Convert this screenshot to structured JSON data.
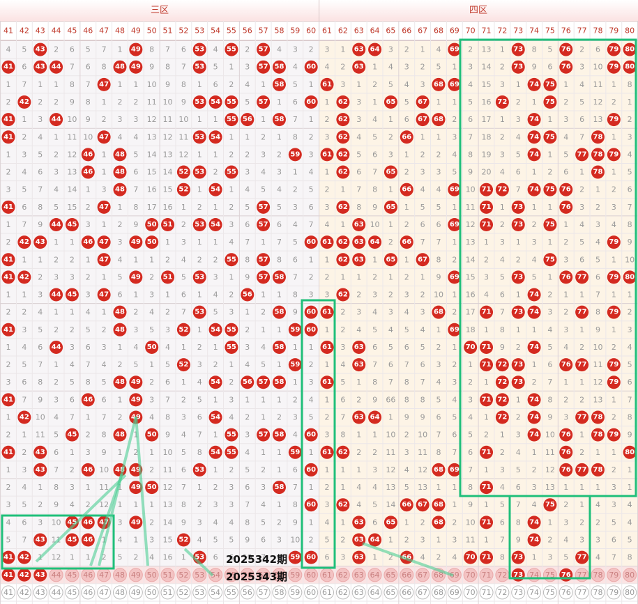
{
  "header": {
    "zone_left": "三区",
    "zone_right": "四区",
    "columns": [
      41,
      42,
      43,
      44,
      45,
      46,
      47,
      48,
      49,
      50,
      51,
      52,
      53,
      54,
      55,
      56,
      57,
      58,
      59,
      60,
      61,
      62,
      63,
      64,
      65,
      66,
      67,
      68,
      69,
      70,
      71,
      72,
      73,
      74,
      75,
      76,
      77,
      78,
      79,
      80
    ]
  },
  "rows": [
    [
      4,
      5,
      43,
      2,
      6,
      5,
      7,
      1,
      49,
      8,
      7,
      6,
      53,
      4,
      55,
      2,
      57,
      4,
      3,
      2,
      3,
      1,
      63,
      64,
      3,
      2,
      1,
      4,
      69,
      2,
      13,
      1,
      73,
      8,
      5,
      76,
      2,
      6,
      79,
      80
    ],
    [
      41,
      6,
      43,
      44,
      7,
      6,
      8,
      48,
      49,
      9,
      8,
      7,
      53,
      5,
      1,
      3,
      57,
      58,
      4,
      60,
      4,
      2,
      63,
      1,
      4,
      3,
      2,
      5,
      1,
      3,
      14,
      2,
      73,
      9,
      6,
      76,
      3,
      10,
      79,
      80
    ],
    [
      1,
      7,
      1,
      1,
      8,
      7,
      47,
      1,
      1,
      10,
      9,
      8,
      1,
      6,
      2,
      4,
      1,
      58,
      5,
      1,
      61,
      3,
      1,
      2,
      5,
      4,
      3,
      68,
      69,
      4,
      15,
      3,
      1,
      74,
      75,
      1,
      4,
      11,
      1,
      8
    ],
    [
      2,
      42,
      2,
      2,
      9,
      8,
      1,
      2,
      2,
      11,
      10,
      9,
      53,
      54,
      55,
      5,
      57,
      1,
      6,
      60,
      1,
      62,
      3,
      1,
      65,
      5,
      67,
      1,
      1,
      5,
      16,
      72,
      2,
      1,
      75,
      2,
      5,
      12,
      2,
      1
    ],
    [
      41,
      1,
      3,
      44,
      10,
      9,
      2,
      3,
      3,
      12,
      11,
      10,
      1,
      1,
      55,
      56,
      1,
      58,
      7,
      1,
      2,
      62,
      3,
      4,
      1,
      6,
      67,
      68,
      2,
      6,
      17,
      1,
      3,
      74,
      1,
      3,
      6,
      13,
      79,
      2
    ],
    [
      41,
      2,
      4,
      1,
      11,
      10,
      47,
      4,
      4,
      13,
      12,
      11,
      53,
      54,
      1,
      1,
      2,
      1,
      8,
      2,
      3,
      62,
      4,
      5,
      2,
      66,
      1,
      1,
      3,
      7,
      18,
      2,
      4,
      74,
      75,
      4,
      7,
      78,
      1,
      3
    ],
    [
      1,
      3,
      5,
      2,
      12,
      46,
      1,
      48,
      5,
      14,
      13,
      12,
      1,
      1,
      2,
      2,
      3,
      2,
      59,
      3,
      61,
      62,
      5,
      6,
      3,
      1,
      2,
      2,
      4,
      8,
      19,
      3,
      5,
      74,
      1,
      5,
      77,
      78,
      79,
      4
    ],
    [
      2,
      4,
      6,
      3,
      13,
      46,
      1,
      48,
      6,
      15,
      14,
      52,
      53,
      2,
      55,
      3,
      4,
      3,
      1,
      4,
      1,
      62,
      6,
      7,
      65,
      2,
      3,
      3,
      5,
      9,
      20,
      4,
      6,
      1,
      2,
      6,
      1,
      78,
      1,
      5
    ],
    [
      3,
      5,
      7,
      4,
      14,
      1,
      3,
      48,
      7,
      16,
      15,
      52,
      1,
      54,
      1,
      4,
      5,
      4,
      2,
      5,
      2,
      1,
      7,
      8,
      1,
      66,
      4,
      4,
      69,
      10,
      71,
      72,
      7,
      74,
      75,
      76,
      2,
      1,
      2,
      6
    ],
    [
      41,
      6,
      8,
      5,
      15,
      2,
      47,
      1,
      8,
      17,
      16,
      1,
      2,
      1,
      2,
      5,
      57,
      5,
      3,
      6,
      3,
      62,
      8,
      9,
      65,
      1,
      5,
      5,
      1,
      11,
      71,
      1,
      73,
      1,
      1,
      76,
      3,
      2,
      3,
      7
    ],
    [
      1,
      7,
      9,
      44,
      45,
      3,
      1,
      2,
      9,
      50,
      51,
      2,
      53,
      54,
      3,
      6,
      57,
      6,
      4,
      7,
      4,
      1,
      63,
      10,
      1,
      2,
      6,
      6,
      69,
      12,
      71,
      2,
      73,
      2,
      75,
      1,
      4,
      3,
      4,
      8
    ],
    [
      2,
      42,
      43,
      1,
      1,
      46,
      47,
      3,
      49,
      50,
      1,
      3,
      1,
      1,
      4,
      7,
      1,
      7,
      5,
      60,
      61,
      62,
      63,
      64,
      2,
      66,
      7,
      7,
      1,
      13,
      1,
      3,
      1,
      3,
      1,
      2,
      5,
      4,
      79,
      9
    ],
    [
      41,
      1,
      1,
      2,
      2,
      1,
      47,
      4,
      1,
      1,
      2,
      4,
      2,
      2,
      55,
      8,
      57,
      8,
      6,
      1,
      1,
      62,
      63,
      1,
      65,
      1,
      67,
      8,
      2,
      14,
      2,
      4,
      2,
      4,
      75,
      3,
      6,
      5,
      1,
      10
    ],
    [
      41,
      42,
      2,
      3,
      3,
      2,
      1,
      5,
      49,
      2,
      51,
      5,
      53,
      3,
      1,
      9,
      57,
      58,
      7,
      2,
      2,
      1,
      1,
      2,
      1,
      2,
      1,
      9,
      69,
      15,
      3,
      5,
      73,
      5,
      1,
      76,
      77,
      6,
      79,
      80
    ],
    [
      1,
      1,
      3,
      44,
      45,
      3,
      47,
      6,
      1,
      3,
      1,
      6,
      1,
      4,
      2,
      56,
      1,
      1,
      8,
      3,
      3,
      62,
      2,
      3,
      2,
      3,
      2,
      10,
      1,
      16,
      4,
      6,
      1,
      74,
      2,
      1,
      1,
      7,
      1,
      1
    ],
    [
      2,
      2,
      4,
      1,
      1,
      4,
      1,
      48,
      2,
      4,
      2,
      7,
      53,
      5,
      3,
      1,
      2,
      58,
      9,
      60,
      61,
      2,
      3,
      4,
      3,
      4,
      3,
      68,
      2,
      17,
      71,
      7,
      73,
      74,
      3,
      2,
      77,
      8,
      79,
      2
    ],
    [
      41,
      3,
      5,
      2,
      2,
      5,
      2,
      48,
      3,
      5,
      3,
      52,
      1,
      54,
      55,
      2,
      1,
      1,
      59,
      60,
      1,
      2,
      4,
      5,
      4,
      5,
      4,
      1,
      69,
      18,
      1,
      8,
      1,
      1,
      4,
      3,
      1,
      9,
      1,
      3
    ],
    [
      1,
      4,
      6,
      44,
      3,
      6,
      3,
      1,
      4,
      50,
      4,
      1,
      2,
      1,
      55,
      3,
      4,
      58,
      1,
      1,
      61,
      3,
      63,
      6,
      5,
      6,
      5,
      2,
      1,
      70,
      71,
      9,
      2,
      74,
      5,
      4,
      2,
      10,
      2,
      4
    ],
    [
      2,
      5,
      7,
      1,
      4,
      7,
      4,
      2,
      5,
      1,
      5,
      52,
      3,
      2,
      1,
      4,
      5,
      1,
      59,
      2,
      1,
      4,
      63,
      7,
      6,
      7,
      6,
      3,
      2,
      1,
      71,
      72,
      73,
      1,
      6,
      76,
      77,
      11,
      79,
      5
    ],
    [
      3,
      6,
      8,
      2,
      5,
      8,
      5,
      48,
      49,
      2,
      6,
      1,
      4,
      54,
      2,
      56,
      57,
      58,
      1,
      3,
      61,
      5,
      1,
      8,
      7,
      8,
      7,
      4,
      3,
      2,
      1,
      72,
      73,
      2,
      7,
      1,
      1,
      12,
      79,
      6
    ],
    [
      41,
      7,
      9,
      3,
      6,
      46,
      6,
      1,
      49,
      3,
      7,
      2,
      5,
      1,
      3,
      1,
      1,
      1,
      2,
      4,
      1,
      6,
      2,
      9,
      66,
      8,
      8,
      5,
      4,
      3,
      71,
      72,
      1,
      74,
      8,
      2,
      2,
      13,
      1,
      7
    ],
    [
      1,
      42,
      10,
      4,
      7,
      1,
      7,
      2,
      49,
      4,
      8,
      3,
      6,
      54,
      4,
      2,
      1,
      2,
      3,
      5,
      2,
      7,
      63,
      64,
      1,
      9,
      9,
      6,
      5,
      4,
      1,
      72,
      2,
      74,
      9,
      3,
      77,
      78,
      2,
      8
    ],
    [
      2,
      1,
      11,
      5,
      45,
      2,
      8,
      48,
      1,
      50,
      9,
      4,
      7,
      1,
      55,
      3,
      57,
      58,
      4,
      60,
      3,
      8,
      1,
      1,
      10,
      2,
      10,
      7,
      6,
      5,
      2,
      1,
      3,
      74,
      10,
      76,
      1,
      78,
      79,
      9
    ],
    [
      41,
      2,
      43,
      6,
      1,
      3,
      9,
      1,
      2,
      1,
      10,
      5,
      8,
      54,
      55,
      4,
      1,
      1,
      59,
      1,
      61,
      62,
      2,
      2,
      11,
      3,
      11,
      8,
      7,
      6,
      71,
      2,
      4,
      1,
      11,
      76,
      2,
      1,
      1,
      80
    ],
    [
      1,
      3,
      43,
      7,
      2,
      46,
      10,
      48,
      49,
      2,
      11,
      6,
      53,
      1,
      2,
      5,
      2,
      1,
      6,
      60,
      1,
      1,
      1,
      3,
      12,
      4,
      12,
      68,
      69,
      7,
      1,
      3,
      5,
      2,
      12,
      76,
      77,
      78,
      2,
      1
    ],
    [
      2,
      4,
      1,
      8,
      3,
      1,
      11,
      1,
      49,
      50,
      12,
      7,
      1,
      2,
      3,
      6,
      3,
      58,
      7,
      1,
      2,
      1,
      4,
      4,
      13,
      5,
      13,
      1,
      1,
      8,
      71,
      4,
      6,
      3,
      13,
      1,
      1,
      1,
      3,
      1
    ],
    [
      3,
      5,
      2,
      9,
      4,
      2,
      12,
      1,
      1,
      1,
      13,
      8,
      2,
      3,
      3,
      7,
      4,
      1,
      8,
      60,
      3,
      62,
      4,
      5,
      14,
      66,
      67,
      68,
      1,
      9,
      1,
      5,
      7,
      4,
      75,
      2,
      1,
      4,
      3,
      4
    ],
    [
      4,
      6,
      3,
      10,
      45,
      46,
      47,
      3,
      49,
      2,
      14,
      9,
      3,
      4,
      4,
      8,
      5,
      2,
      9,
      1,
      4,
      1,
      63,
      6,
      65,
      1,
      2,
      68,
      2,
      10,
      71,
      6,
      8,
      74,
      1,
      3,
      2,
      2,
      5,
      4
    ],
    [
      5,
      7,
      43,
      11,
      45,
      46,
      1,
      4,
      1,
      3,
      15,
      52,
      4,
      5,
      5,
      9,
      6,
      3,
      10,
      2,
      5,
      2,
      63,
      64,
      1,
      2,
      3,
      1,
      3,
      11,
      1,
      7,
      9,
      74,
      2,
      4,
      3,
      3,
      6,
      5
    ],
    [
      41,
      42,
      1,
      12,
      1,
      1,
      2,
      5,
      2,
      4,
      16,
      1,
      53,
      6,
      6,
      10,
      7,
      4,
      59,
      60,
      6,
      3,
      63,
      1,
      2,
      66,
      4,
      2,
      4,
      70,
      71,
      8,
      73,
      1,
      3,
      5,
      77,
      4,
      7,
      8
    ]
  ],
  "period_labels": [
    "2025342期",
    "2025343期"
  ],
  "picked": [
    41,
    42,
    43,
    73,
    76
  ]
}
